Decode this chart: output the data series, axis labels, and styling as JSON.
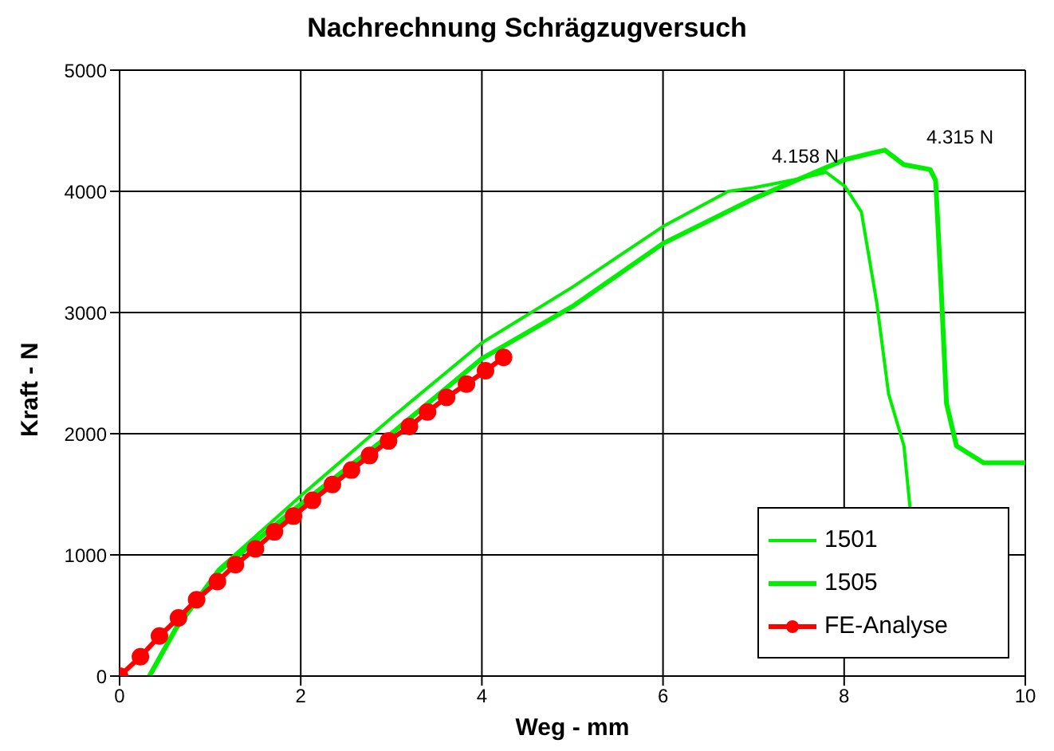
{
  "chart_data": {
    "type": "line",
    "title": "Nachrechnung Schrägzugversuch",
    "xlabel": "Weg - mm",
    "ylabel": "Kraft - N",
    "xlim": [
      0,
      10
    ],
    "xticks": [
      0,
      2,
      4,
      6,
      8,
      10
    ],
    "ylim": [
      0,
      5000
    ],
    "yticks": [
      0,
      1000,
      2000,
      3000,
      4000,
      5000
    ],
    "grid": true,
    "legend": "bottom right",
    "annotations": [
      {
        "text": "4.158 N",
        "x": 7.8,
        "y": 4158
      },
      {
        "text": "4.315 N",
        "x": 8.45,
        "y": 4315
      }
    ],
    "series": [
      {
        "name": "1501",
        "color": "#00ee00",
        "marker": "none",
        "x": [
          0.32,
          0.62,
          1.09,
          2.02,
          3,
          4,
          5,
          6,
          6.72,
          7,
          7.48,
          7.8,
          8.01,
          8.19,
          8.36,
          8.49,
          8.66,
          8.73
        ],
        "values": [
          0,
          400,
          880,
          1500,
          2130,
          2750,
          3210,
          3710,
          4000,
          4030,
          4100,
          4158,
          4040,
          3830,
          3080,
          2330,
          1900,
          1370
        ]
      },
      {
        "name": "1505",
        "color": "#00ee00",
        "marker": "none",
        "x": [
          0.33,
          0.62,
          1.09,
          2.02,
          3,
          4,
          5,
          6,
          7,
          7.5,
          8,
          8.3,
          8.45,
          8.66,
          8.95,
          9.01,
          9.07,
          9.13,
          9.24,
          9.54,
          10
        ],
        "values": [
          0,
          390,
          860,
          1430,
          2000,
          2620,
          3050,
          3570,
          3940,
          4100,
          4260,
          4315,
          4340,
          4220,
          4180,
          4090,
          3210,
          2250,
          1900,
          1760,
          1760
        ]
      },
      {
        "name": "FE-Analyse",
        "color": "#ff0000",
        "marker": "circle",
        "x": [
          0,
          0.23,
          0.44,
          0.65,
          0.85,
          1.08,
          1.28,
          1.5,
          1.71,
          1.92,
          2.13,
          2.35,
          2.56,
          2.76,
          2.97,
          3.2,
          3.4,
          3.61,
          3.83,
          4.04,
          4.24
        ],
        "values": [
          0,
          160,
          330,
          480,
          630,
          780,
          920,
          1050,
          1190,
          1320,
          1450,
          1580,
          1700,
          1820,
          1940,
          2060,
          2180,
          2300,
          2410,
          2520,
          2630
        ]
      }
    ]
  }
}
